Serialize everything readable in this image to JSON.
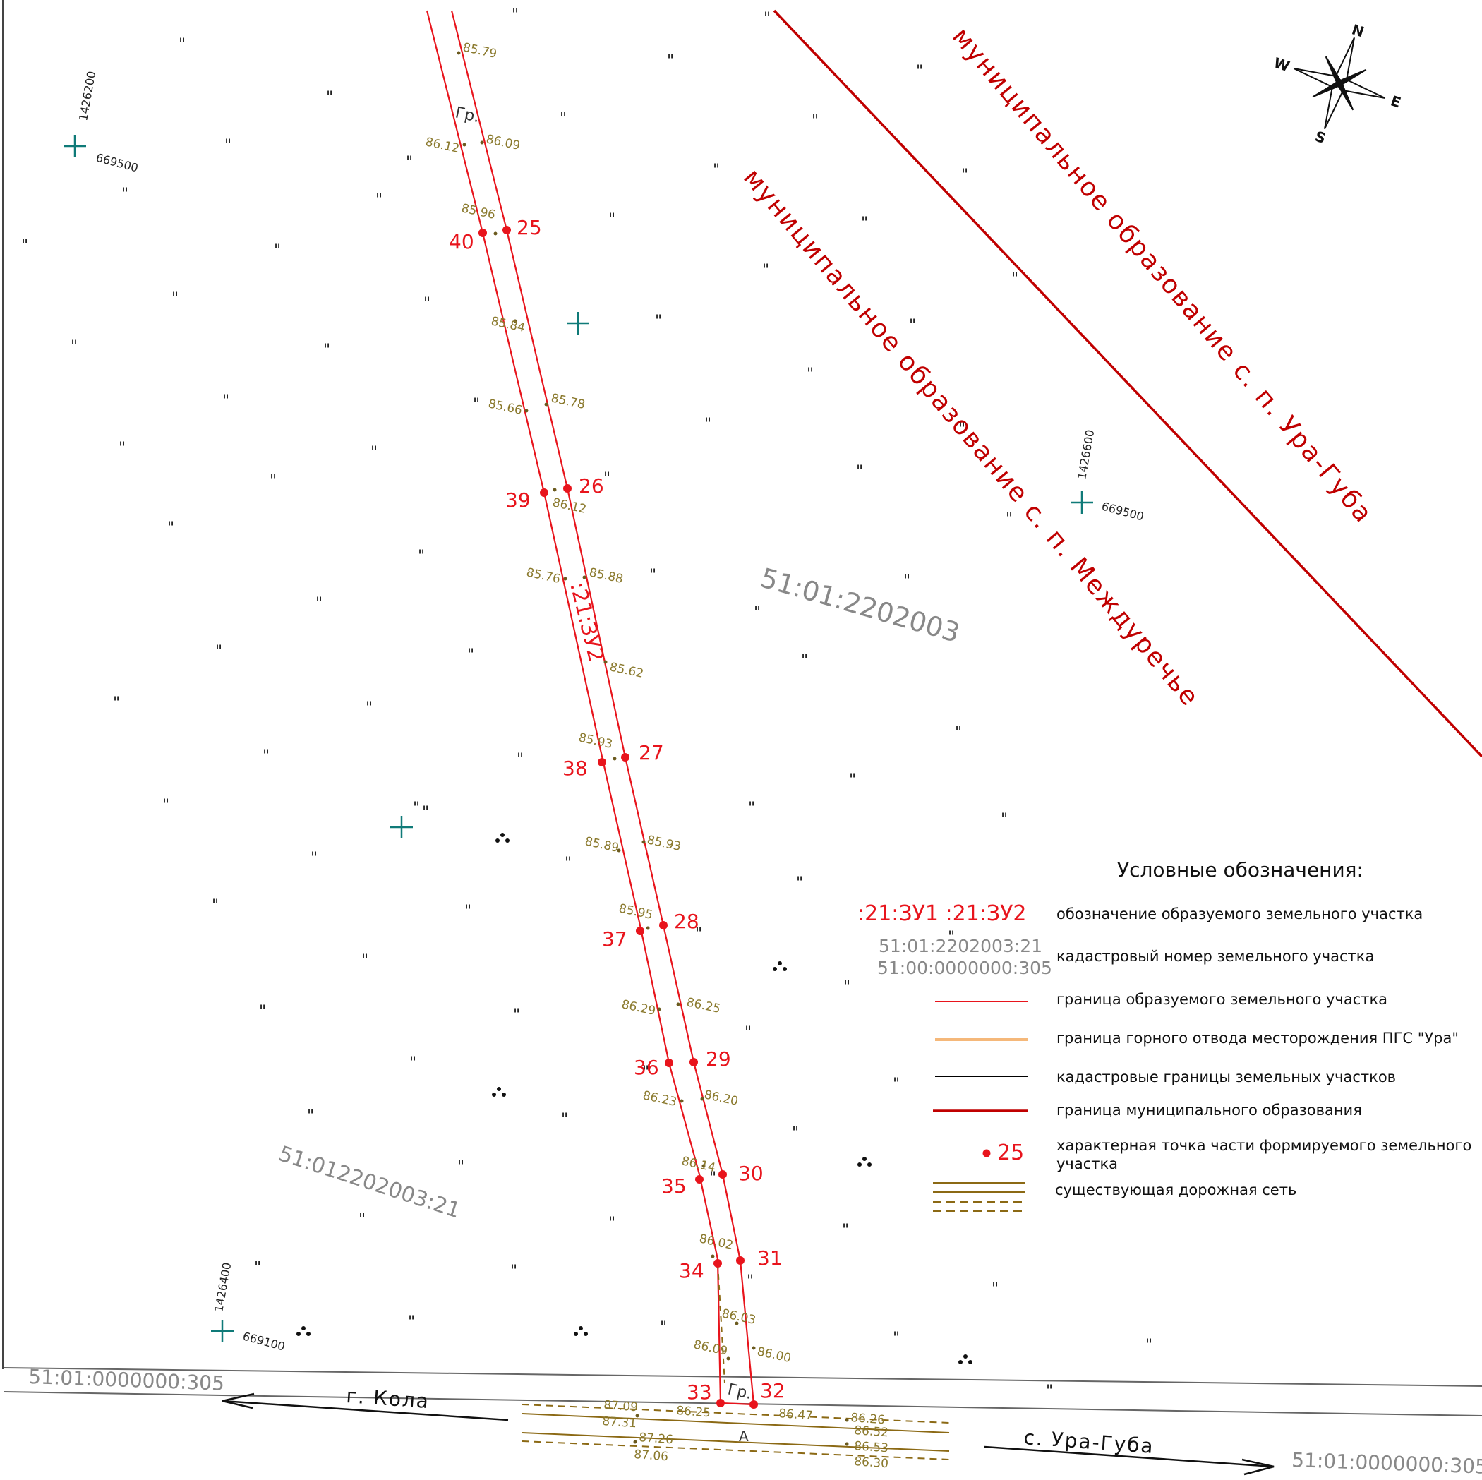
{
  "map": {
    "municipal_labels": [
      "муниципальное образование с. п. Ура-Губа",
      "муниципальное образование с. п. Междуречье"
    ],
    "cadastral_labels": [
      "51:01:2202003",
      "51:012202003:21",
      "51:01:0000000:305",
      "51:01:0000000:305"
    ],
    "plot_label": ":21:ЗУ2",
    "road_labels": [
      "г. Кола",
      "с. Ура-Губа"
    ],
    "section_labels": [
      "Гр.",
      "Гр.",
      "А"
    ],
    "point_numbers": [
      "25",
      "26",
      "27",
      "28",
      "29",
      "30",
      "31",
      "32",
      "33",
      "34",
      "35",
      "36",
      "37",
      "38",
      "39",
      "40"
    ],
    "elevations": [
      "85.79",
      "86.09",
      "86.12",
      "85.96",
      "85.84",
      "85.78",
      "85.66",
      "86.12",
      "85.76",
      "85.88",
      "85.62",
      "85.93",
      "85.89",
      "85.93",
      "85.95",
      "86.29",
      "86.25",
      "86.23",
      "86.20",
      "86.14",
      "86.02",
      "86.03",
      "86.09",
      "86.00",
      "87.09",
      "86.25",
      "86.47",
      "86.26",
      "87.31",
      "86.52",
      "87.26",
      "86.53",
      "87.06",
      "86.30"
    ],
    "grid_labels": [
      {
        "y": "1426200",
        "x": "669500"
      },
      {
        "y": "1426600",
        "x": "669500"
      },
      {
        "y": "1426400",
        "x": "669100"
      }
    ],
    "compass": [
      "N",
      "E",
      "S",
      "W"
    ],
    "symbol": "\""
  },
  "legend": {
    "title": "Условные обозначения:",
    "items": [
      {
        "sample": ":21:ЗУ1  :21:ЗУ2",
        "text": "обозначение образуемого земельного участка"
      },
      {
        "sample": "51:01:2202003:21",
        "sample2": "51:00:0000000:305",
        "text": "кадастровый номер земельного участка"
      },
      {
        "text": "граница образуемого земельного участка",
        "color": "#e8141c"
      },
      {
        "text": "граница горного отвода месторождения ПГС \"Ура\"",
        "color": "#f5b87a"
      },
      {
        "text": "кадастровые границы земельных участков",
        "color": "#000000"
      },
      {
        "text": "граница муниципального образования",
        "color": "#c00000"
      },
      {
        "sample": "25",
        "text": "характерная точка части формируемого земельного",
        "text2": "участка"
      },
      {
        "text": "существующая дорожная сеть",
        "color": "#8b6914"
      }
    ]
  }
}
